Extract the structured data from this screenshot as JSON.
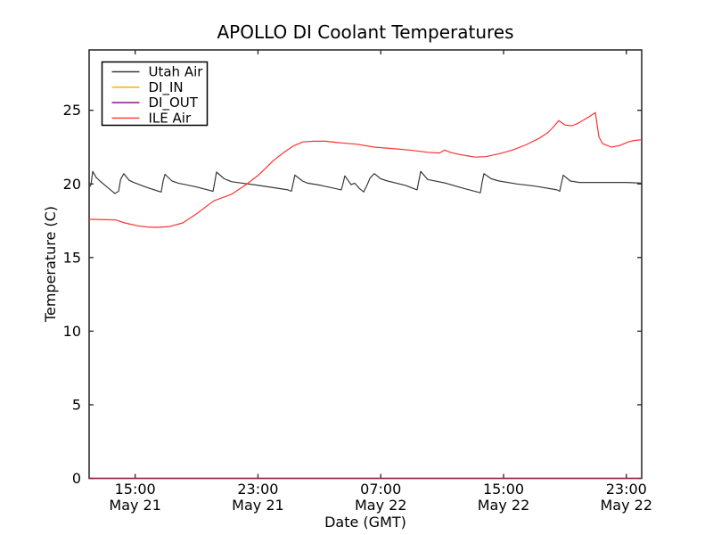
{
  "chart_data": {
    "type": "line",
    "title": "APOLLO DI Coolant Temperatures",
    "xlabel": "Date (GMT)",
    "ylabel": "Temperature (C)",
    "x_unit": "hours since May 21 12:00 GMT",
    "xlim": [
      0,
      36
    ],
    "ylim": [
      0,
      29.1
    ],
    "grid": false,
    "yticks": [
      0,
      5,
      10,
      15,
      20,
      25
    ],
    "xticks": [
      {
        "h": 3,
        "time": "15:00",
        "date": "May 21"
      },
      {
        "h": 11,
        "time": "23:00",
        "date": "May 21"
      },
      {
        "h": 19,
        "time": "07:00",
        "date": "May 22"
      },
      {
        "h": 27,
        "time": "15:00",
        "date": "May 22"
      },
      {
        "h": 35,
        "time": "23:00",
        "date": "May 22"
      }
    ],
    "legend": {
      "position": "upper left",
      "entries": [
        "Utah Air",
        "DI_IN",
        "DI_OUT",
        "ILE Air"
      ]
    },
    "series": [
      {
        "name": "Utah Air",
        "color": "#3a3a3a",
        "opacity": 1,
        "points": [
          [
            0,
            19.75
          ],
          [
            0.12,
            19.95
          ],
          [
            0.23,
            20.85
          ],
          [
            0.45,
            20.45
          ],
          [
            0.7,
            20.2
          ],
          [
            1.1,
            19.85
          ],
          [
            1.68,
            19.35
          ],
          [
            1.92,
            19.5
          ],
          [
            2.05,
            20.3
          ],
          [
            2.26,
            20.7
          ],
          [
            2.6,
            20.25
          ],
          [
            2.9,
            20.1
          ],
          [
            3.66,
            19.8
          ],
          [
            4.53,
            19.5
          ],
          [
            4.7,
            19.45
          ],
          [
            4.82,
            20.2
          ],
          [
            4.94,
            20.65
          ],
          [
            5.4,
            20.2
          ],
          [
            5.81,
            20.05
          ],
          [
            6.97,
            19.8
          ],
          [
            8.07,
            19.5
          ],
          [
            8.18,
            20.1
          ],
          [
            8.3,
            20.8
          ],
          [
            8.8,
            20.35
          ],
          [
            9.29,
            20.15
          ],
          [
            11.03,
            19.9
          ],
          [
            12.95,
            19.6
          ],
          [
            13.18,
            19.5
          ],
          [
            13.3,
            20.1
          ],
          [
            13.41,
            20.6
          ],
          [
            13.9,
            20.2
          ],
          [
            14.23,
            20.05
          ],
          [
            15.1,
            19.9
          ],
          [
            16.43,
            19.6
          ],
          [
            16.56,
            20.1
          ],
          [
            16.66,
            20.55
          ],
          [
            17.07,
            19.95
          ],
          [
            17.3,
            20.05
          ],
          [
            17.6,
            19.7
          ],
          [
            17.89,
            19.45
          ],
          [
            18.1,
            19.9
          ],
          [
            18.3,
            20.4
          ],
          [
            18.58,
            20.7
          ],
          [
            19.0,
            20.35
          ],
          [
            19.45,
            20.2
          ],
          [
            20.61,
            19.9
          ],
          [
            21.37,
            19.6
          ],
          [
            21.48,
            20.2
          ],
          [
            21.6,
            20.85
          ],
          [
            22.06,
            20.3
          ],
          [
            23.23,
            20.05
          ],
          [
            24.39,
            19.7
          ],
          [
            25.49,
            19.4
          ],
          [
            25.6,
            20.1
          ],
          [
            25.72,
            20.7
          ],
          [
            26.2,
            20.35
          ],
          [
            26.71,
            20.2
          ],
          [
            27.87,
            20.0
          ],
          [
            29.03,
            19.85
          ],
          [
            30.48,
            19.6
          ],
          [
            30.66,
            19.5
          ],
          [
            30.78,
            20.1
          ],
          [
            30.89,
            20.6
          ],
          [
            31.35,
            20.2
          ],
          [
            31.94,
            20.1
          ],
          [
            33.0,
            20.1
          ],
          [
            34.0,
            20.1
          ],
          [
            35.0,
            20.1
          ],
          [
            36,
            20.05
          ]
        ]
      },
      {
        "name": "DI_IN",
        "color": "#ffa500",
        "opacity": 0.65,
        "points": [
          [
            0,
            0
          ],
          [
            36,
            0
          ]
        ]
      },
      {
        "name": "DI_OUT",
        "color": "#800080",
        "opacity": 0.65,
        "points": [
          [
            0,
            0
          ],
          [
            36,
            0
          ]
        ]
      },
      {
        "name": "ILE Air",
        "color": "#ff3232",
        "opacity": 1,
        "points": [
          [
            0,
            17.6
          ],
          [
            1.74,
            17.55
          ],
          [
            2.32,
            17.35
          ],
          [
            3.19,
            17.15
          ],
          [
            3.77,
            17.08
          ],
          [
            4.35,
            17.05
          ],
          [
            5.23,
            17.1
          ],
          [
            6.1,
            17.35
          ],
          [
            6.97,
            17.95
          ],
          [
            8.13,
            18.85
          ],
          [
            9.29,
            19.3
          ],
          [
            10.22,
            19.95
          ],
          [
            11.03,
            20.6
          ],
          [
            12.02,
            21.6
          ],
          [
            12.77,
            22.2
          ],
          [
            13.35,
            22.6
          ],
          [
            13.94,
            22.85
          ],
          [
            14.63,
            22.9
          ],
          [
            15.39,
            22.9
          ],
          [
            16.26,
            22.8
          ],
          [
            17.42,
            22.7
          ],
          [
            18.58,
            22.5
          ],
          [
            19.74,
            22.4
          ],
          [
            20.9,
            22.3
          ],
          [
            22.06,
            22.15
          ],
          [
            22.82,
            22.1
          ],
          [
            23.17,
            22.3
          ],
          [
            23.52,
            22.15
          ],
          [
            24.1,
            22.0
          ],
          [
            24.68,
            21.9
          ],
          [
            25.14,
            21.82
          ],
          [
            25.84,
            21.85
          ],
          [
            26.71,
            22.05
          ],
          [
            27.58,
            22.3
          ],
          [
            28.45,
            22.65
          ],
          [
            29.32,
            23.1
          ],
          [
            29.9,
            23.5
          ],
          [
            30.19,
            23.8
          ],
          [
            30.6,
            24.3
          ],
          [
            31.0,
            24.0
          ],
          [
            31.47,
            23.95
          ],
          [
            31.81,
            24.1
          ],
          [
            32.23,
            24.35
          ],
          [
            32.63,
            24.6
          ],
          [
            32.98,
            24.85
          ],
          [
            33.21,
            23.2
          ],
          [
            33.44,
            22.75
          ],
          [
            34.02,
            22.5
          ],
          [
            34.55,
            22.6
          ],
          [
            35.13,
            22.85
          ],
          [
            35.54,
            22.95
          ],
          [
            36,
            23.0
          ]
        ]
      }
    ]
  },
  "style": {
    "background": "#ffffff",
    "spine_color": "#222222",
    "tick_color": "#222222"
  }
}
